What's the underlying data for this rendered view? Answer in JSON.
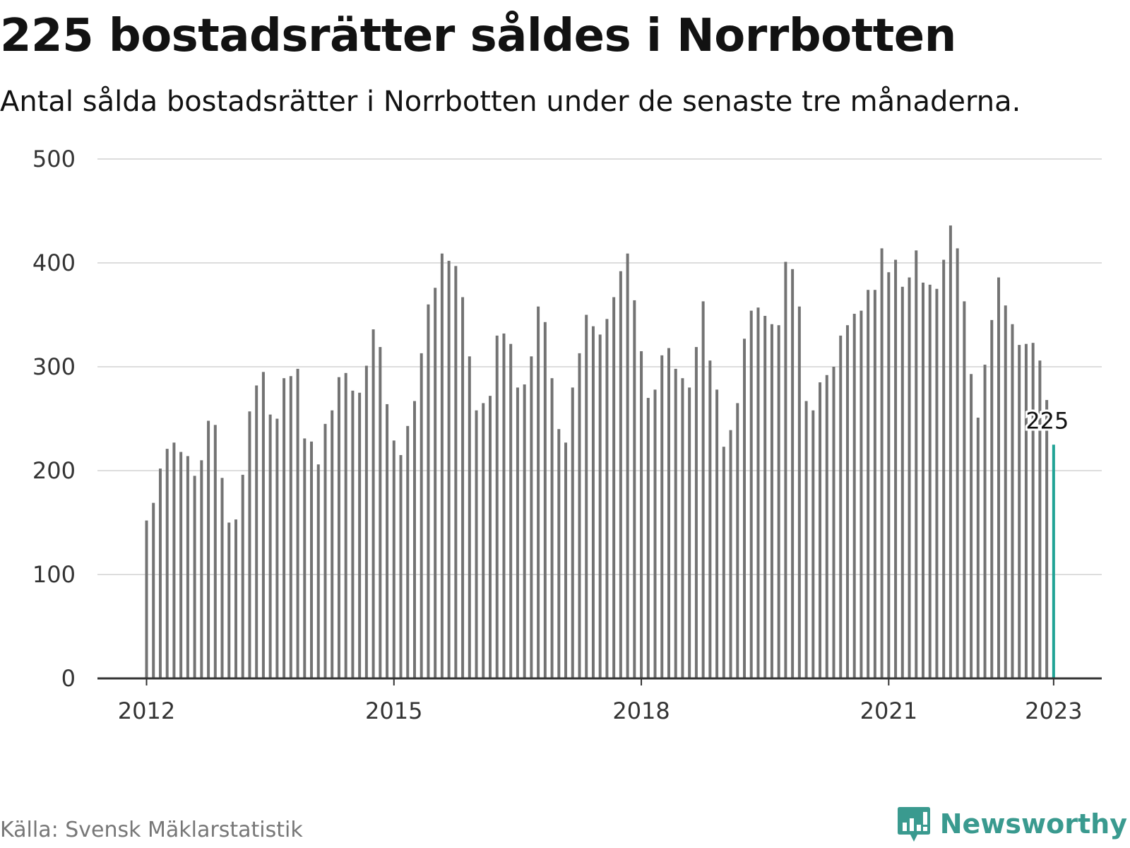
{
  "title": "225 bostadsrätter såldes i Norrbotten",
  "subtitle": "Antal sålda bostadsrätter i Norrbotten under de senaste tre månaderna.",
  "source": "Källa: Svensk Mäklarstatistik",
  "brand": {
    "name": "Newsworthy",
    "icon": "newsworthy-logo-icon",
    "color": "#3a9a8f"
  },
  "colors": {
    "bar": "#737373",
    "highlight": "#21a396",
    "grid": "#dddddd",
    "axis": "#333333"
  },
  "chart_data": {
    "type": "bar",
    "title": "225 bostadsrätter såldes i Norrbotten",
    "xlabel": "",
    "ylabel": "",
    "ylim": [
      0,
      500
    ],
    "y_ticks": [
      0,
      100,
      200,
      300,
      400,
      500
    ],
    "x_ticks": [
      "2012",
      "2015",
      "2018",
      "2021",
      "2023"
    ],
    "start": "2012-01",
    "highlight_label": "225",
    "values": [
      152,
      169,
      202,
      221,
      227,
      218,
      214,
      195,
      210,
      248,
      244,
      193,
      150,
      153,
      196,
      257,
      282,
      295,
      254,
      250,
      289,
      291,
      298,
      231,
      228,
      206,
      245,
      258,
      290,
      294,
      277,
      275,
      301,
      336,
      319,
      264,
      229,
      215,
      243,
      267,
      313,
      360,
      376,
      409,
      402,
      397,
      367,
      310,
      258,
      265,
      272,
      330,
      332,
      322,
      280,
      283,
      310,
      358,
      343,
      289,
      240,
      227,
      280,
      313,
      350,
      339,
      331,
      346,
      367,
      392,
      409,
      364,
      315,
      270,
      278,
      311,
      318,
      298,
      289,
      280,
      319,
      363,
      306,
      278,
      223,
      239,
      265,
      327,
      354,
      357,
      349,
      341,
      340,
      401,
      394,
      358,
      267,
      258,
      285,
      292,
      300,
      330,
      340,
      351,
      354,
      374,
      374,
      414,
      391,
      403,
      377,
      386,
      412,
      381,
      379,
      375,
      403,
      436,
      414,
      363,
      293,
      251,
      302,
      345,
      386,
      359,
      341,
      321,
      322,
      323,
      306,
      268,
      225
    ]
  }
}
